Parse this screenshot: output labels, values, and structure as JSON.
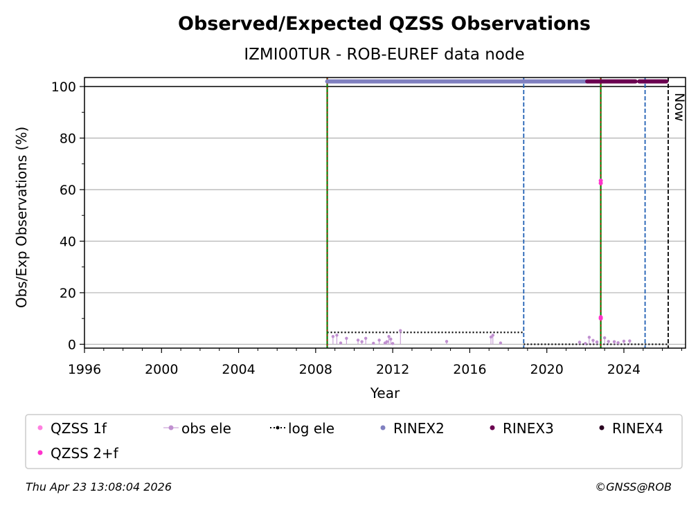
{
  "chart_data": {
    "type": "scatter",
    "title": "Observed/Expected QZSS Observations",
    "subtitle": "IZMI00TUR - ROB-EUREF data node",
    "xlabel": "Year",
    "ylabel": "Obs/Exp Observations (%)",
    "xlim": [
      1996,
      2027.2
    ],
    "ylim": [
      -1.5,
      103.5
    ],
    "x_ticks": [
      1996,
      2000,
      2004,
      2008,
      2012,
      2016,
      2020,
      2024
    ],
    "y_ticks": [
      0,
      20,
      40,
      60,
      80,
      100
    ],
    "grid": "horizontal",
    "legend_placement": "bottom",
    "reference_line": 100,
    "now_label": "Now",
    "now_x": 2026.3,
    "event_lines": [
      {
        "x": 2008.6,
        "kind": "receiver-antenna",
        "color": "#008000",
        "overlay": "#cc0000"
      },
      {
        "x": 2018.8,
        "kind": "receiver",
        "color": "#1f5fb4"
      },
      {
        "x": 2022.8,
        "kind": "receiver-antenna",
        "color": "#008000",
        "overlay": "#cc0000"
      },
      {
        "x": 2025.1,
        "kind": "receiver",
        "color": "#1f5fb4"
      },
      {
        "x": 2026.3,
        "kind": "now",
        "color": "#000000"
      }
    ],
    "log_ele_segments": [
      {
        "x1": 2008.6,
        "x2": 2018.8,
        "y": 4.6
      },
      {
        "x1": 2018.8,
        "x2": 2026.3,
        "y": 0
      }
    ],
    "rinex_bands": [
      {
        "name": "RINEX2",
        "x1": 2008.6,
        "x2": 2022.1,
        "y": 102,
        "color": "#8080c0"
      },
      {
        "name": "RINEX3",
        "x1": 2022.1,
        "x2": 2024.6,
        "y": 102,
        "color": "#6b0050"
      },
      {
        "name": "RINEX3",
        "x1": 2024.8,
        "x2": 2026.2,
        "y": 102,
        "color": "#6b0050"
      }
    ],
    "series": [
      {
        "name": "QZSS 2+f",
        "color": "#ff33cc",
        "x": [
          2022.8,
          2022.8,
          2022.8,
          2022.8
        ],
        "y": [
          63.5,
          62.5,
          10.5,
          10
        ]
      },
      {
        "name": "obs ele",
        "color": "#c090d0",
        "x": [
          2008.9,
          2009.1,
          2009.3,
          2009.6,
          2010.2,
          2010.4,
          2010.6,
          2011.0,
          2011.3,
          2011.6,
          2011.7,
          2011.8,
          2011.9,
          2012.0,
          2012.4,
          2014.8,
          2017.1,
          2017.2,
          2017.6,
          2021.7,
          2022.0,
          2022.2,
          2022.4,
          2022.6,
          2023.0,
          2023.2,
          2023.5,
          2023.7,
          2024.0,
          2024.3
        ],
        "y": [
          3,
          3.5,
          0.5,
          2.3,
          1.6,
          1,
          2.3,
          0.4,
          1.6,
          0.5,
          1,
          3,
          2,
          0.3,
          5.3,
          1.1,
          2.8,
          3.5,
          0.5,
          0.8,
          0.3,
          2.7,
          1.5,
          0.9,
          2.5,
          1.1,
          1,
          0.6,
          1.2,
          1.3
        ]
      }
    ],
    "legend": [
      "QZSS 1f",
      "obs ele",
      "log ele",
      "RINEX2",
      "RINEX3",
      "RINEX4",
      "QZSS 2+f"
    ]
  },
  "footer": {
    "timestamp": "Thu Apr 23 13:08:04 2026",
    "credit": "©GNSS@ROB"
  }
}
